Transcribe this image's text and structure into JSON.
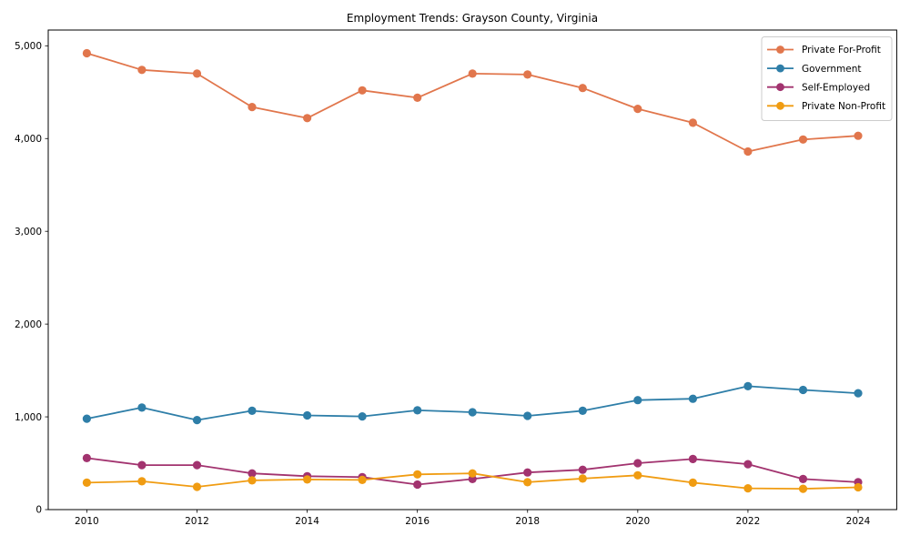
{
  "chart_data": {
    "type": "line",
    "title": "Employment Trends: Grayson County, Virginia",
    "x": [
      2010,
      2011,
      2012,
      2013,
      2014,
      2015,
      2016,
      2017,
      2018,
      2019,
      2020,
      2021,
      2022,
      2023,
      2024
    ],
    "series": [
      {
        "name": "Private For-Profit",
        "color": "#E1764C",
        "values": [
          4920,
          4740,
          4700,
          4340,
          4220,
          4520,
          4440,
          4700,
          4690,
          4545,
          4320,
          4170,
          3860,
          3990,
          4030
        ]
      },
      {
        "name": "Government",
        "color": "#2E7EA8",
        "values": [
          980,
          1100,
          965,
          1065,
          1015,
          1005,
          1070,
          1050,
          1010,
          1065,
          1180,
          1195,
          1330,
          1290,
          1255
        ]
      },
      {
        "name": "Self-Employed",
        "color": "#A2336F",
        "values": [
          555,
          480,
          480,
          390,
          360,
          350,
          270,
          330,
          400,
          430,
          500,
          545,
          490,
          330,
          295
        ]
      },
      {
        "name": "Private Non-Profit",
        "color": "#F09C12",
        "values": [
          290,
          305,
          245,
          315,
          325,
          320,
          380,
          390,
          295,
          335,
          370,
          290,
          230,
          225,
          240
        ]
      }
    ],
    "xticks": [
      2010,
      2012,
      2014,
      2016,
      2018,
      2020,
      2022,
      2024
    ],
    "xtick_labels": [
      "2010",
      "2012",
      "2014",
      "2016",
      "2018",
      "2020",
      "2022",
      "2024"
    ],
    "yticks": [
      0,
      1000,
      2000,
      3000,
      4000,
      5000
    ],
    "ytick_labels": [
      "0",
      "1,000",
      "2,000",
      "3,000",
      "4,000",
      "5,000"
    ],
    "xlim": [
      2009.3,
      2024.7
    ],
    "ylim": [
      0,
      5170
    ],
    "grid": false,
    "legend": {
      "position": "upper right"
    },
    "axis_color": "#000000",
    "background_color": "#ffffff"
  }
}
